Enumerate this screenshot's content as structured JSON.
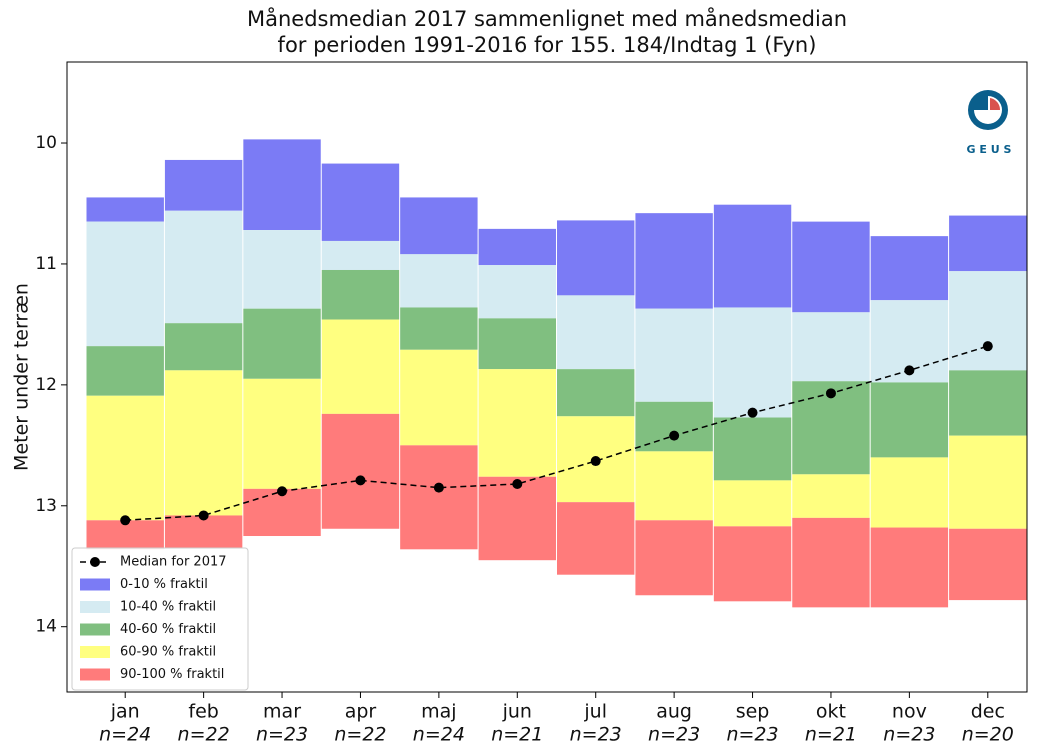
{
  "chart_data": {
    "type": "floating_bar",
    "title": [
      "Månedsmedian 2017 sammenlignet med månedsmedian",
      "for perioden 1991-2016 for 155.  184/Indtag 1 (Fyn)"
    ],
    "y_label": "Meter under terræn",
    "logo_text": "G E U S",
    "categories": [
      "jan",
      "feb",
      "mar",
      "apr",
      "maj",
      "jun",
      "jul",
      "aug",
      "sep",
      "okt",
      "nov",
      "dec"
    ],
    "n_labels": [
      "n=24",
      "n=22",
      "n=23",
      "n=22",
      "n=24",
      "n=21",
      "n=23",
      "n=23",
      "n=23",
      "n=21",
      "n=23",
      "n=20"
    ],
    "ylim": [
      9.33,
      14.54
    ],
    "y_inverted": true,
    "yticks": [
      10,
      11,
      12,
      13,
      14
    ],
    "legend": "lower left",
    "series": [
      {
        "name": "0-10 % fraktil",
        "color": "#7b7bf5",
        "values": [
          [
            10.45,
            10.65
          ],
          [
            10.14,
            10.56
          ],
          [
            9.97,
            10.72
          ],
          [
            10.17,
            10.81
          ],
          [
            10.45,
            10.92
          ],
          [
            10.71,
            11.01
          ],
          [
            10.64,
            11.26
          ],
          [
            10.58,
            11.37
          ],
          [
            10.51,
            11.36
          ],
          [
            10.65,
            11.4
          ],
          [
            10.77,
            11.3
          ],
          [
            10.6,
            11.06
          ]
        ]
      },
      {
        "name": "10-40 % fraktil",
        "color": "#d5ebf2",
        "values": [
          [
            10.65,
            11.68
          ],
          [
            10.56,
            11.49
          ],
          [
            10.72,
            11.37
          ],
          [
            10.81,
            11.05
          ],
          [
            10.92,
            11.36
          ],
          [
            11.01,
            11.45
          ],
          [
            11.26,
            11.87
          ],
          [
            11.37,
            12.14
          ],
          [
            11.36,
            12.27
          ],
          [
            11.4,
            11.97
          ],
          [
            11.3,
            11.98
          ],
          [
            11.06,
            11.88
          ]
        ]
      },
      {
        "name": "40-60 % fraktil",
        "color": "#80bf80",
        "values": [
          [
            11.68,
            12.09
          ],
          [
            11.49,
            11.88
          ],
          [
            11.37,
            11.95
          ],
          [
            11.05,
            11.46
          ],
          [
            11.36,
            11.71
          ],
          [
            11.45,
            11.87
          ],
          [
            11.87,
            12.26
          ],
          [
            12.14,
            12.55
          ],
          [
            12.27,
            12.79
          ],
          [
            11.97,
            12.74
          ],
          [
            11.98,
            12.6
          ],
          [
            11.88,
            12.42
          ]
        ]
      },
      {
        "name": "60-90 % fraktil",
        "color": "#ffff80",
        "values": [
          [
            12.09,
            13.12
          ],
          [
            11.88,
            13.08
          ],
          [
            11.95,
            12.86
          ],
          [
            11.46,
            12.24
          ],
          [
            11.71,
            12.5
          ],
          [
            11.87,
            12.76
          ],
          [
            12.26,
            12.97
          ],
          [
            12.55,
            13.12
          ],
          [
            12.79,
            13.17
          ],
          [
            12.74,
            13.1
          ],
          [
            12.6,
            13.18
          ],
          [
            12.42,
            13.19
          ]
        ]
      },
      {
        "name": "90-100 % fraktil",
        "color": "#ff7b7b",
        "values": [
          [
            13.12,
            13.36
          ],
          [
            13.08,
            13.35
          ],
          [
            12.86,
            13.25
          ],
          [
            12.24,
            13.19
          ],
          [
            12.5,
            13.36
          ],
          [
            12.76,
            13.45
          ],
          [
            12.97,
            13.57
          ],
          [
            13.12,
            13.74
          ],
          [
            13.17,
            13.79
          ],
          [
            13.1,
            13.84
          ],
          [
            13.18,
            13.84
          ],
          [
            13.19,
            13.78
          ]
        ]
      }
    ],
    "median": {
      "name": "Median for 2017",
      "color": "#000000",
      "values": [
        13.12,
        13.08,
        12.88,
        12.79,
        12.85,
        12.82,
        12.63,
        12.42,
        12.23,
        12.07,
        11.88,
        11.68
      ]
    }
  }
}
